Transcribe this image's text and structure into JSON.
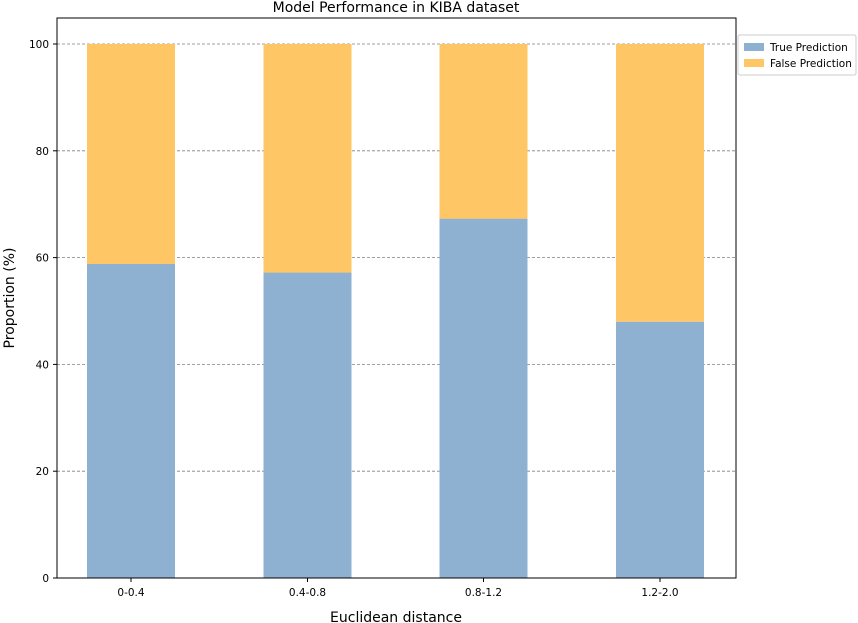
{
  "chart_data": {
    "type": "bar",
    "stacked": true,
    "title": "Model Performance in KIBA dataset",
    "xlabel": "Euclidean distance",
    "ylabel": "Proportion (%)",
    "categories": [
      "0-0.4",
      "0.4-0.8",
      "0.8-1.2",
      "1.2-2.0"
    ],
    "series": [
      {
        "name": "True Prediction",
        "values": [
          58.8,
          57.2,
          67.3,
          48.0
        ],
        "color": "#8fb1d1"
      },
      {
        "name": "False Prediction",
        "values": [
          41.2,
          42.8,
          32.7,
          52.0
        ],
        "color": "#fec665"
      }
    ],
    "ylim": [
      0,
      100
    ],
    "yticks": [
      0,
      20,
      40,
      60,
      80,
      100
    ],
    "grid": "horizontal dashed",
    "legend": "top-right, outside plot"
  }
}
